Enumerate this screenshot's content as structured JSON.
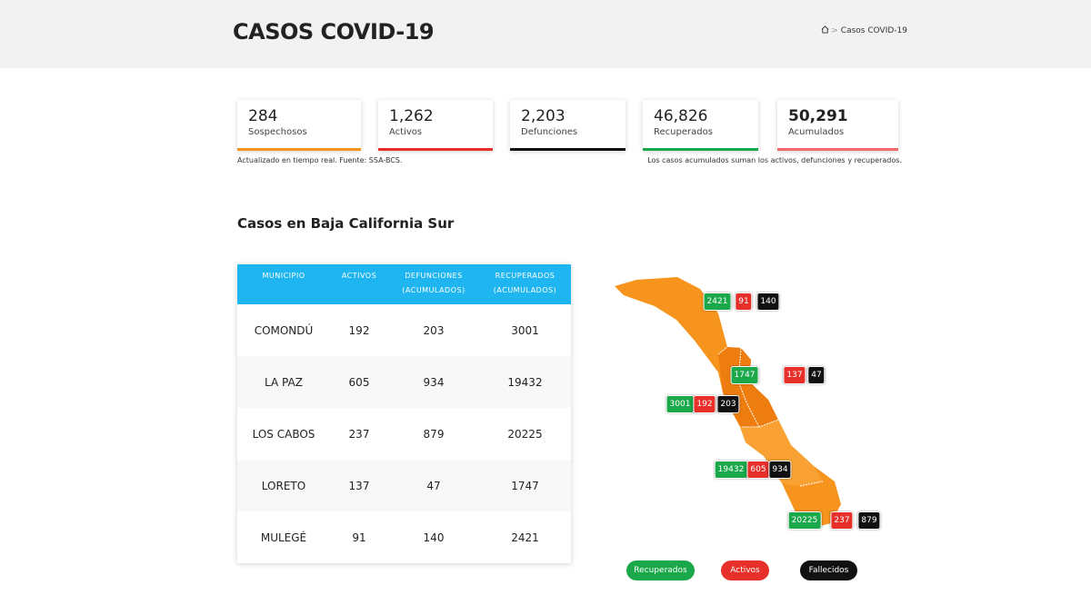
{
  "header": {
    "title": "CASOS COVID-19",
    "breadcrumb": "Casos COVID-19"
  },
  "cards": [
    {
      "value": "284",
      "label": "Sospechosos"
    },
    {
      "value": "1,262",
      "label": "Activos"
    },
    {
      "value": "2,203",
      "label": "Defunciones"
    },
    {
      "value": "46,826",
      "label": "Recuperados"
    },
    {
      "value": "50,291",
      "label": "Acumulados"
    }
  ],
  "notes": [
    "Actualizado en tiempo real. Fuente: SSA-BCS.",
    "Los casos acumulados suman los activos, defunciones y recuperados."
  ],
  "section_title": "Casos en Baja California Sur",
  "table": {
    "headers": [
      "MUNICIPIO",
      "ACTIVOS",
      "DEFUNCIONES (ACUMULADOS)",
      "RECUPERADOS (ACUMULADOS)"
    ],
    "rows": [
      [
        "COMONDÚ",
        192,
        203,
        3001
      ],
      [
        "LA PAZ",
        605,
        934,
        19432
      ],
      [
        "LOS CABOS",
        237,
        879,
        20225
      ],
      [
        "LORETO",
        137,
        47,
        1747
      ],
      [
        "MULEGÉ",
        91,
        140,
        2421
      ]
    ]
  },
  "legend": [
    "Recuperados",
    "Activos",
    "Fallecidos"
  ]
}
